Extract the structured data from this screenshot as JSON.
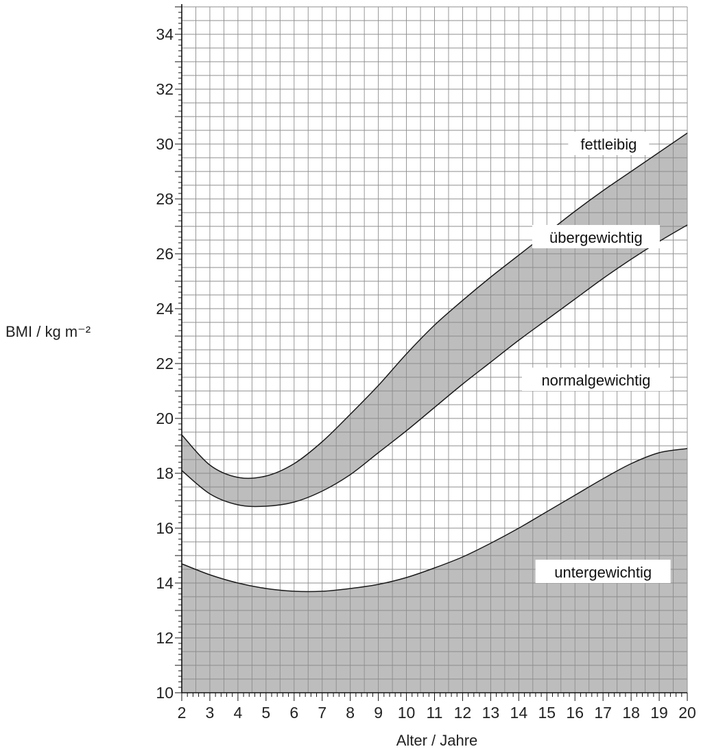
{
  "chart_data": {
    "type": "area",
    "xlabel": "Alter / Jahre",
    "ylabel": "BMI / kg m⁻²",
    "xlim": [
      2,
      20
    ],
    "ylim": [
      10,
      35
    ],
    "grid": true,
    "x_ticks": [
      "2",
      "3",
      "4",
      "5",
      "6",
      "7",
      "8",
      "9",
      "10",
      "11",
      "12",
      "13",
      "14",
      "15",
      "16",
      "17",
      "18",
      "19",
      "20"
    ],
    "y_ticks": [
      "10",
      "12",
      "14",
      "16",
      "18",
      "20",
      "22",
      "24",
      "26",
      "28",
      "30",
      "32",
      "34"
    ],
    "series": [
      {
        "name": "untergewichtig",
        "x": [
          2,
          3,
          4,
          5,
          6,
          7,
          8,
          9,
          10,
          11,
          12,
          13,
          14,
          15,
          16,
          17,
          18,
          19,
          20
        ],
        "values": [
          14.7,
          14.3,
          14.0,
          13.8,
          13.7,
          13.7,
          13.8,
          13.95,
          14.2,
          14.55,
          14.95,
          15.45,
          16.0,
          16.6,
          17.2,
          17.8,
          18.35,
          18.75,
          18.9
        ]
      },
      {
        "name": "übergewichtig",
        "x": [
          2,
          3,
          4,
          5,
          6,
          7,
          8,
          9,
          10,
          11,
          12,
          13,
          14,
          15,
          16,
          17,
          18,
          19,
          20
        ],
        "values": [
          18.1,
          17.25,
          16.85,
          16.8,
          16.95,
          17.35,
          17.95,
          18.75,
          19.55,
          20.4,
          21.25,
          22.05,
          22.85,
          23.6,
          24.35,
          25.1,
          25.8,
          26.45,
          27.05
        ]
      },
      {
        "name": "fettleibig",
        "x": [
          2,
          3,
          4,
          5,
          6,
          7,
          8,
          9,
          10,
          11,
          12,
          13,
          14,
          15,
          16,
          17,
          18,
          19,
          20
        ],
        "values": [
          19.4,
          18.3,
          17.85,
          17.9,
          18.35,
          19.15,
          20.15,
          21.2,
          22.35,
          23.4,
          24.3,
          25.15,
          25.95,
          26.75,
          27.55,
          28.3,
          29.0,
          29.7,
          30.4
        ]
      }
    ],
    "region_labels": [
      "fettleibig",
      "übergewichtig",
      "normalgewichtig",
      "untergewichtig"
    ],
    "fill_color": "#bdbdbd",
    "grid_color": "#8c8c8c",
    "line_color": "#1a1a1a"
  }
}
